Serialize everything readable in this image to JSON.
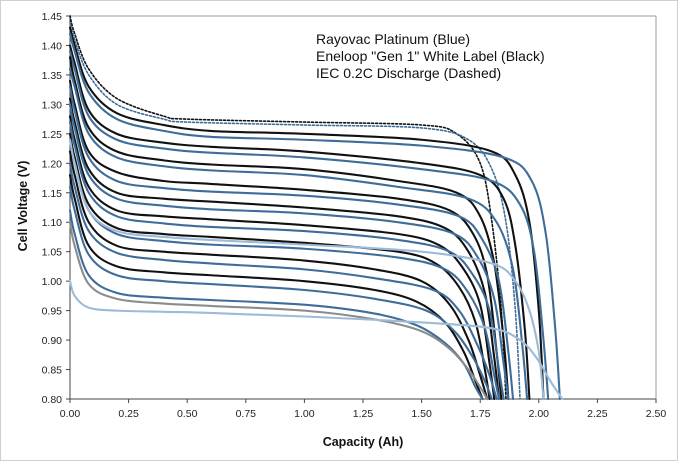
{
  "chart_data": {
    "type": "line",
    "title": "",
    "annotations": [
      "Rayovac Platinum (Blue)",
      "Eneloop \"Gen 1\" White Label (Black)",
      "IEC 0.2C Discharge (Dashed)"
    ],
    "xlabel": "Capacity (Ah)",
    "ylabel": "Cell Voltage (V)",
    "xlim": [
      0,
      2.5
    ],
    "ylim": [
      0.8,
      1.45
    ],
    "x_ticks": [
      "0.00",
      "0.25",
      "0.50",
      "0.75",
      "1.00",
      "1.25",
      "1.50",
      "1.75",
      "2.00",
      "2.25",
      "2.50"
    ],
    "y_ticks": [
      "0.80",
      "0.85",
      "0.90",
      "0.95",
      "1.00",
      "1.05",
      "1.10",
      "1.15",
      "1.20",
      "1.25",
      "1.30",
      "1.35",
      "1.40",
      "1.45"
    ],
    "grid": false,
    "colors": {
      "blue": "#3f6d9a",
      "black": "#111111",
      "light_blue": "#9dbbd6",
      "grey": "#8c8c8c"
    },
    "series": [
      {
        "color": "#111111",
        "dashed": true,
        "x": [
          0.0,
          0.02,
          0.08,
          0.2,
          0.4,
          0.5,
          1.0,
          1.5,
          1.65,
          1.75,
          1.8,
          1.84,
          1.86
        ],
        "y": [
          1.45,
          1.42,
          1.36,
          1.31,
          1.28,
          1.275,
          1.27,
          1.265,
          1.25,
          1.2,
          1.1,
          0.95,
          0.8
        ]
      },
      {
        "color": "#3f6d9a",
        "dashed": true,
        "x": [
          0.0,
          0.02,
          0.08,
          0.2,
          0.4,
          0.5,
          1.0,
          1.5,
          1.7,
          1.8,
          1.86,
          1.9,
          1.92
        ],
        "y": [
          1.44,
          1.41,
          1.35,
          1.3,
          1.275,
          1.27,
          1.265,
          1.26,
          1.24,
          1.19,
          1.1,
          0.95,
          0.8
        ]
      },
      {
        "color": "#111111",
        "x": [
          0.0,
          0.02,
          0.08,
          0.2,
          0.4,
          0.6,
          1.0,
          1.5,
          1.8,
          1.9,
          1.96,
          2.0,
          2.02
        ],
        "y": [
          1.43,
          1.4,
          1.33,
          1.285,
          1.265,
          1.255,
          1.25,
          1.24,
          1.22,
          1.18,
          1.1,
          0.95,
          0.8
        ]
      },
      {
        "color": "#3f6d9a",
        "x": [
          0.0,
          0.02,
          0.08,
          0.2,
          0.4,
          0.6,
          1.0,
          1.5,
          1.85,
          1.97,
          2.03,
          2.07,
          2.09
        ],
        "y": [
          1.42,
          1.39,
          1.32,
          1.275,
          1.255,
          1.245,
          1.24,
          1.23,
          1.21,
          1.17,
          1.08,
          0.92,
          0.8
        ]
      },
      {
        "color": "#111111",
        "x": [
          0.0,
          0.02,
          0.08,
          0.2,
          0.4,
          0.6,
          1.0,
          1.5,
          1.75,
          1.85,
          1.9,
          1.94,
          1.96
        ],
        "y": [
          1.4,
          1.37,
          1.29,
          1.25,
          1.235,
          1.228,
          1.22,
          1.2,
          1.18,
          1.14,
          1.06,
          0.92,
          0.8
        ]
      },
      {
        "color": "#3f6d9a",
        "x": [
          0.0,
          0.02,
          0.08,
          0.2,
          0.4,
          0.6,
          1.0,
          1.5,
          1.8,
          1.92,
          1.98,
          2.02,
          2.04
        ],
        "y": [
          1.39,
          1.36,
          1.28,
          1.24,
          1.225,
          1.218,
          1.21,
          1.19,
          1.17,
          1.13,
          1.05,
          0.9,
          0.8
        ]
      },
      {
        "color": "#111111",
        "x": [
          0.0,
          0.02,
          0.08,
          0.2,
          0.4,
          0.6,
          1.0,
          1.4,
          1.65,
          1.75,
          1.81,
          1.85,
          1.87
        ],
        "y": [
          1.38,
          1.34,
          1.26,
          1.22,
          1.205,
          1.198,
          1.19,
          1.17,
          1.15,
          1.11,
          1.03,
          0.9,
          0.8
        ]
      },
      {
        "color": "#3f6d9a",
        "x": [
          0.0,
          0.02,
          0.08,
          0.2,
          0.4,
          0.6,
          1.0,
          1.4,
          1.7,
          1.82,
          1.89,
          1.93,
          1.95
        ],
        "y": [
          1.36,
          1.33,
          1.25,
          1.21,
          1.195,
          1.188,
          1.18,
          1.16,
          1.14,
          1.1,
          1.02,
          0.89,
          0.8
        ]
      },
      {
        "color": "#111111",
        "x": [
          0.0,
          0.02,
          0.08,
          0.2,
          0.4,
          0.6,
          1.0,
          1.4,
          1.62,
          1.72,
          1.78,
          1.82,
          1.84
        ],
        "y": [
          1.34,
          1.3,
          1.22,
          1.185,
          1.17,
          1.165,
          1.155,
          1.14,
          1.12,
          1.08,
          1.01,
          0.88,
          0.8
        ]
      },
      {
        "color": "#3f6d9a",
        "x": [
          0.0,
          0.02,
          0.08,
          0.2,
          0.4,
          0.6,
          1.0,
          1.4,
          1.66,
          1.76,
          1.83,
          1.87,
          1.89
        ],
        "y": [
          1.33,
          1.29,
          1.21,
          1.17,
          1.158,
          1.152,
          1.145,
          1.13,
          1.11,
          1.07,
          1.0,
          0.88,
          0.8
        ]
      },
      {
        "color": "#111111",
        "x": [
          0.0,
          0.02,
          0.08,
          0.2,
          0.4,
          0.6,
          1.0,
          1.4,
          1.6,
          1.7,
          1.77,
          1.81,
          1.83
        ],
        "y": [
          1.31,
          1.27,
          1.19,
          1.15,
          1.14,
          1.135,
          1.125,
          1.11,
          1.09,
          1.05,
          0.98,
          0.87,
          0.8
        ]
      },
      {
        "color": "#3f6d9a",
        "x": [
          0.0,
          0.02,
          0.08,
          0.2,
          0.4,
          0.6,
          1.0,
          1.4,
          1.64,
          1.74,
          1.81,
          1.85,
          1.87
        ],
        "y": [
          1.3,
          1.26,
          1.18,
          1.14,
          1.128,
          1.122,
          1.115,
          1.1,
          1.08,
          1.04,
          0.97,
          0.86,
          0.8
        ]
      },
      {
        "color": "#111111",
        "x": [
          0.0,
          0.02,
          0.08,
          0.2,
          0.4,
          0.6,
          1.0,
          1.4,
          1.58,
          1.68,
          1.75,
          1.79,
          1.81
        ],
        "y": [
          1.28,
          1.24,
          1.16,
          1.12,
          1.11,
          1.105,
          1.095,
          1.08,
          1.06,
          1.02,
          0.96,
          0.86,
          0.8
        ]
      },
      {
        "color": "#3f6d9a",
        "x": [
          0.0,
          0.02,
          0.08,
          0.2,
          0.4,
          0.6,
          1.0,
          1.4,
          1.62,
          1.72,
          1.79,
          1.83,
          1.85
        ],
        "y": [
          1.27,
          1.23,
          1.15,
          1.11,
          1.098,
          1.092,
          1.085,
          1.07,
          1.05,
          1.01,
          0.95,
          0.85,
          0.8
        ]
      },
      {
        "color": "#111111",
        "x": [
          0.0,
          0.02,
          0.08,
          0.2,
          0.4,
          0.6,
          1.0,
          1.4,
          1.56,
          1.66,
          1.73,
          1.77,
          1.79
        ],
        "y": [
          1.25,
          1.21,
          1.13,
          1.09,
          1.08,
          1.075,
          1.065,
          1.05,
          1.03,
          0.99,
          0.93,
          0.85,
          0.8
        ]
      },
      {
        "color": "#3f6d9a",
        "x": [
          0.0,
          0.02,
          0.08,
          0.2,
          0.4,
          0.6,
          1.0,
          1.4,
          1.6,
          1.7,
          1.77,
          1.81,
          1.83
        ],
        "y": [
          1.24,
          1.2,
          1.12,
          1.08,
          1.068,
          1.062,
          1.055,
          1.04,
          1.02,
          0.98,
          0.92,
          0.84,
          0.8
        ]
      },
      {
        "color": "#111111",
        "x": [
          0.0,
          0.02,
          0.08,
          0.2,
          0.4,
          0.6,
          1.0,
          1.3,
          1.5,
          1.62,
          1.7,
          1.75,
          1.78
        ],
        "y": [
          1.22,
          1.18,
          1.1,
          1.06,
          1.05,
          1.045,
          1.035,
          1.02,
          1.0,
          0.96,
          0.9,
          0.84,
          0.8
        ]
      },
      {
        "color": "#3f6d9a",
        "x": [
          0.0,
          0.02,
          0.08,
          0.2,
          0.4,
          0.6,
          1.0,
          1.3,
          1.55,
          1.66,
          1.74,
          1.79,
          1.82
        ],
        "y": [
          1.2,
          1.16,
          1.085,
          1.048,
          1.036,
          1.03,
          1.02,
          1.005,
          0.985,
          0.95,
          0.89,
          0.84,
          0.8
        ]
      },
      {
        "color": "#111111",
        "x": [
          0.0,
          0.02,
          0.08,
          0.2,
          0.4,
          0.6,
          1.0,
          1.3,
          1.48,
          1.6,
          1.68,
          1.73,
          1.76
        ],
        "y": [
          1.18,
          1.14,
          1.06,
          1.025,
          1.015,
          1.01,
          1.0,
          0.985,
          0.965,
          0.93,
          0.88,
          0.83,
          0.8
        ]
      },
      {
        "color": "#3f6d9a",
        "x": [
          0.0,
          0.02,
          0.08,
          0.2,
          0.4,
          0.6,
          1.0,
          1.3,
          1.52,
          1.64,
          1.72,
          1.77,
          1.8
        ],
        "y": [
          1.16,
          1.12,
          1.045,
          1.01,
          1.0,
          0.995,
          0.985,
          0.97,
          0.95,
          0.915,
          0.87,
          0.83,
          0.8
        ]
      },
      {
        "color": "#3f6d9a",
        "x": [
          0.0,
          0.02,
          0.08,
          0.2,
          0.4,
          0.6,
          1.0,
          1.3,
          1.48,
          1.6,
          1.68,
          1.73,
          1.76
        ],
        "y": [
          1.12,
          1.08,
          1.01,
          0.98,
          0.972,
          0.968,
          0.96,
          0.945,
          0.925,
          0.895,
          0.86,
          0.82,
          0.8
        ]
      },
      {
        "color": "#8c8c8c",
        "x": [
          0.0,
          0.02,
          0.08,
          0.2,
          0.4,
          0.6,
          1.0,
          1.3,
          1.5,
          1.62,
          1.7,
          1.75,
          1.78
        ],
        "y": [
          1.1,
          1.06,
          0.995,
          0.97,
          0.962,
          0.958,
          0.95,
          0.935,
          0.915,
          0.885,
          0.85,
          0.82,
          0.8
        ]
      },
      {
        "color": "#9dbbd6",
        "x": [
          0.0,
          0.02,
          0.08,
          0.2,
          0.4,
          0.6,
          1.0,
          1.5,
          1.8,
          1.92,
          1.99,
          2.05,
          2.1
        ],
        "y": [
          1.0,
          0.975,
          0.955,
          0.95,
          0.948,
          0.946,
          0.94,
          0.93,
          0.92,
          0.9,
          0.87,
          0.83,
          0.8
        ]
      },
      {
        "color": "#9dbbd6",
        "x": [
          0.0,
          0.02,
          0.08,
          0.2,
          0.4,
          0.6,
          1.0,
          1.5,
          1.8,
          1.9,
          1.96,
          2.0,
          2.02
        ],
        "y": [
          1.24,
          1.2,
          1.12,
          1.085,
          1.075,
          1.07,
          1.062,
          1.05,
          1.03,
          1.0,
          0.95,
          0.88,
          0.8
        ]
      }
    ]
  }
}
